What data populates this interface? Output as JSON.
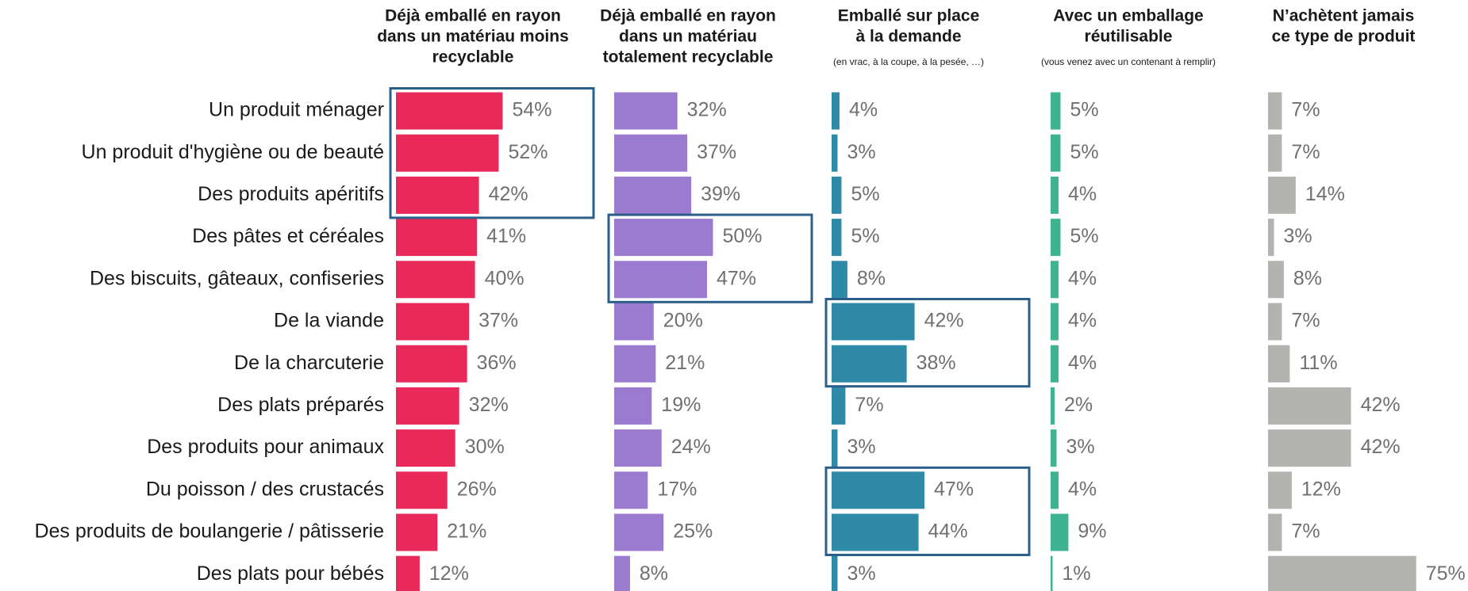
{
  "chart_data": {
    "type": "bar",
    "categories": [
      "Un produit ménager",
      "Un produit d'hygiène ou de beauté",
      "Des produits apéritifs",
      "Des pâtes et céréales",
      "Des biscuits, gâteaux, confiseries",
      "De la viande",
      "De la charcuterie",
      "Des plats préparés",
      "Des produits pour animaux",
      "Du poisson / des crustacés",
      "Des produits de boulangerie / pâtisserie",
      "Des plats pour bébés"
    ],
    "series": [
      {
        "name_lines": [
          "Déjà emballé en rayon",
          "dans un matériau moins",
          "recyclable"
        ],
        "color": "#e8295a",
        "values": [
          54,
          52,
          42,
          41,
          40,
          37,
          36,
          32,
          30,
          26,
          21,
          12
        ],
        "value_labels": [
          "54%",
          "52%",
          "42%",
          "41%",
          "40%",
          "37%",
          "36%",
          "32%",
          "30%",
          "26%",
          "21%",
          "12%"
        ]
      },
      {
        "name_lines": [
          "Déjà emballé en rayon",
          "dans un matériau",
          "totalement recyclable"
        ],
        "color": "#9b7bd0",
        "values": [
          32,
          37,
          39,
          50,
          47,
          20,
          21,
          19,
          24,
          17,
          25,
          8
        ],
        "value_labels": [
          "32%",
          "37%",
          "39%",
          "50%",
          "47%",
          "20%",
          "21%",
          "19%",
          "24%",
          "17%",
          "25%",
          "8%"
        ]
      },
      {
        "name_lines": [
          "Emballé sur place",
          "à la demande"
        ],
        "note": "(en vrac, à la coupe, à la pesée, …)",
        "color": "#2f8aa8",
        "values": [
          4,
          3,
          5,
          5,
          8,
          42,
          38,
          7,
          3,
          47,
          44,
          3
        ],
        "value_labels": [
          "4%",
          "3%",
          "5%",
          "5%",
          "8%",
          "42%",
          "38%",
          "7%",
          "3%",
          "47%",
          "44%",
          "3%"
        ]
      },
      {
        "name_lines": [
          "Avec un emballage",
          "réutilisable"
        ],
        "note": "(vous venez avec un contenant à remplir)",
        "color": "#3db391",
        "values": [
          5,
          5,
          4,
          5,
          4,
          4,
          4,
          2,
          3,
          4,
          9,
          1
        ],
        "value_labels": [
          "5%",
          "5%",
          "4%",
          "5%",
          "4%",
          "4%",
          "4%",
          "2%",
          "3%",
          "4%",
          "9%",
          "1%"
        ]
      },
      {
        "name_lines": [
          "N’achètent jamais",
          "ce type de produit"
        ],
        "color": "#b3b3b0",
        "values": [
          7,
          7,
          14,
          3,
          8,
          7,
          11,
          42,
          42,
          12,
          7,
          75
        ],
        "value_labels": [
          "7%",
          "7%",
          "14%",
          "3%",
          "8%",
          "7%",
          "11%",
          "42%",
          "42%",
          "12%",
          "7%",
          "75%"
        ]
      }
    ]
  }
}
